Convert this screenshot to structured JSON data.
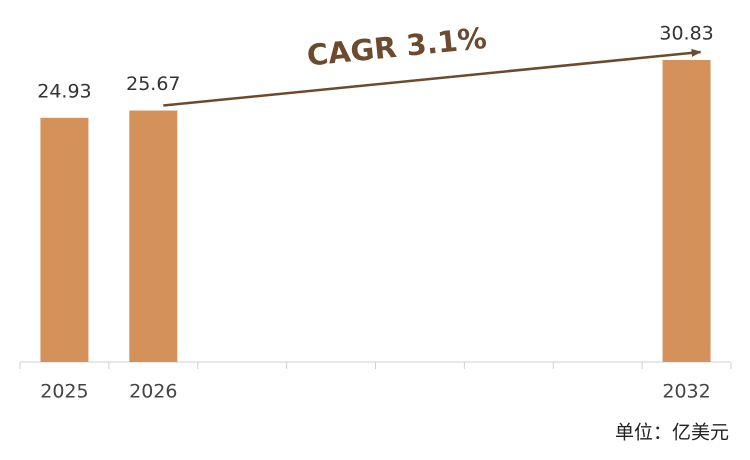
{
  "chart_data": {
    "type": "bar",
    "categories": [
      "2025",
      "2026",
      null,
      null,
      null,
      null,
      null,
      "2032"
    ],
    "values": [
      24.93,
      25.67,
      null,
      null,
      null,
      null,
      null,
      30.83
    ],
    "color": "#d4915a",
    "annotation": "CAGR 3.1%",
    "unit_note": "单位：亿美元"
  }
}
